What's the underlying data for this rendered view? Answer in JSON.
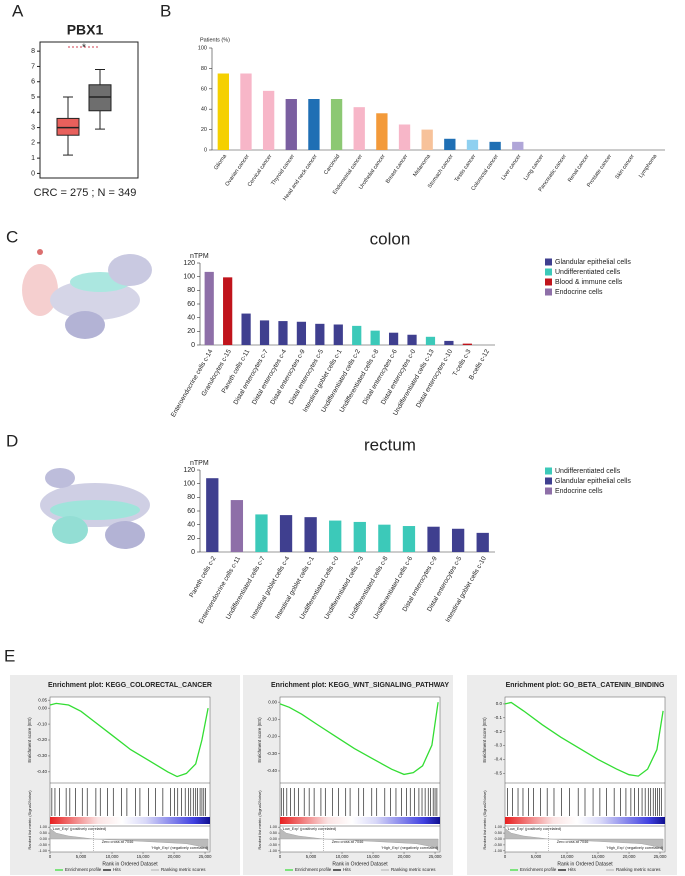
{
  "panels": [
    "A",
    "B",
    "C",
    "D",
    "E"
  ],
  "chart_data": [
    {
      "type": "box",
      "title": "PBX1",
      "caption": "CRC = 275 ; N = 349",
      "annotation": "*",
      "ylim": [
        -0.3,
        8.6
      ],
      "yticks": [
        0,
        1,
        2,
        3,
        4,
        5,
        6,
        7,
        8
      ],
      "series": [
        {
          "color": "#e8605c",
          "min": 1.2,
          "q1": 2.5,
          "median": 3.0,
          "q3": 3.6,
          "max": 5.0
        },
        {
          "color": "#6e6e6e",
          "min": 2.9,
          "q1": 4.1,
          "median": 5.0,
          "q3": 5.8,
          "max": 6.8
        }
      ]
    },
    {
      "type": "bar",
      "ylabel": "Patients (%)",
      "ylim": [
        0,
        100
      ],
      "yticks": [
        0,
        20,
        40,
        60,
        80,
        100
      ],
      "categories": [
        "Glioma",
        "Ovarian cancer",
        "Cervical cancer",
        "Thyroid cancer",
        "Head and neck cancer",
        "Carcinoid",
        "Endometrial cancer",
        "Urothelial cancer",
        "Breast cancer",
        "Melanoma",
        "Stomach cancer",
        "Testis cancer",
        "Colorectal cancer",
        "Liver cancer",
        "Lung cancer",
        "Pancreatic cancer",
        "Renal cancer",
        "Prostate cancer",
        "Skin cancer",
        "Lymphoma"
      ],
      "values": [
        75,
        75,
        58,
        50,
        50,
        50,
        42,
        36,
        25,
        20,
        11,
        10,
        8,
        8,
        0,
        0,
        0,
        0,
        0,
        0
      ],
      "colors": [
        "#f5d000",
        "#f7b6c8",
        "#f7b6c8",
        "#7a5fa0",
        "#1f6fb4",
        "#8cc873",
        "#f7b6c8",
        "#f39a3a",
        "#f7b6c8",
        "#f7c29a",
        "#1f6fb4",
        "#8fd0f0",
        "#1f6fb4",
        "#b0a6d8",
        "#cccccc",
        "#cccccc",
        "#cccccc",
        "#cccccc",
        "#cccccc",
        "#cccccc"
      ]
    },
    {
      "type": "bar",
      "title": "colon",
      "ylabel": "nTPM",
      "ylim": [
        0,
        120
      ],
      "yticks": [
        0,
        20,
        40,
        60,
        80,
        100,
        120
      ],
      "categories": [
        "Enteroendocrine cells c-14",
        "Granulocytes c-15",
        "Paneth cells c-11",
        "Distal enterocytes c-7",
        "Distal enterocytes c-4",
        "Distal enterocytes c-9",
        "Distal enterocytes c-5",
        "Intestinal goblet cells c-1",
        "Undifferentiated cells c-2",
        "Undifferentiated cells c-8",
        "Distal enterocytes c-6",
        "Distal enterocytes c-0",
        "Undifferentiated cells c-13",
        "Distal enterocytes c-10",
        "T-cells c-3",
        "B-cells c-12"
      ],
      "values": [
        107,
        99,
        46,
        36,
        35,
        34,
        31,
        30,
        28,
        21,
        18,
        15,
        12,
        6,
        2,
        0
      ],
      "colors": [
        "#8e6fa8",
        "#c0141c",
        "#3f3f8f",
        "#3f3f8f",
        "#3f3f8f",
        "#3f3f8f",
        "#3f3f8f",
        "#3f3f8f",
        "#3cc9b9",
        "#3cc9b9",
        "#3f3f8f",
        "#3f3f8f",
        "#3cc9b9",
        "#3f3f8f",
        "#c0141c",
        "#c0141c"
      ],
      "legend": [
        {
          "name": "Glandular epithelial cells",
          "color": "#3f3f8f"
        },
        {
          "name": "Undifferentiated cells",
          "color": "#3cc9b9"
        },
        {
          "name": "Blood & immune cells",
          "color": "#c0141c"
        },
        {
          "name": "Endocrine cells",
          "color": "#8e6fa8"
        }
      ]
    },
    {
      "type": "bar",
      "title": "rectum",
      "ylabel": "nTPM",
      "ylim": [
        0,
        120
      ],
      "yticks": [
        0,
        20,
        40,
        60,
        80,
        100,
        120
      ],
      "categories": [
        "Paneth cells c-2",
        "Enteroendocrine cells c-11",
        "Undifferentiated cells c-7",
        "Intestinal goblet cells c-4",
        "Intestinal goblet cells c-1",
        "Undifferentiated cells c-0",
        "Undifferentiated cells c-3",
        "Undifferentiated cells c-8",
        "Undifferentiated cells c-6",
        "Distal enterocytes c-9",
        "Distal enterocytes c-5",
        "Intestinal goblet cells c-10"
      ],
      "values": [
        108,
        76,
        55,
        54,
        51,
        46,
        44,
        40,
        38,
        37,
        34,
        28
      ],
      "colors": [
        "#3f3f8f",
        "#8e6fa8",
        "#3cc9b9",
        "#3f3f8f",
        "#3f3f8f",
        "#3cc9b9",
        "#3cc9b9",
        "#3cc9b9",
        "#3cc9b9",
        "#3f3f8f",
        "#3f3f8f",
        "#3f3f8f"
      ],
      "legend": [
        {
          "name": "Undifferentiated cells",
          "color": "#3cc9b9"
        },
        {
          "name": "Glandular epithelial cells",
          "color": "#3f3f8f"
        },
        {
          "name": "Endocrine cells",
          "color": "#8e6fa8"
        }
      ]
    },
    {
      "type": "gsea",
      "title": "Enrichment plot: KEGG_COLORECTAL_CANCER",
      "ylabel": "Enrichment score (ES)",
      "metric_label": "Ranked list metric (Signal2Noise)",
      "xlabel": "Rank in Ordered Dataset",
      "low_label": "'Low_Exp' (positively correlated)",
      "high_label": "'High_Exp' (negatively correlated)",
      "zero_cross": "Zero cross at 7046",
      "legend": [
        "Enrichment profile",
        "Hits",
        "Ranking metric scores"
      ],
      "color": "#33dd33",
      "xlim": [
        0,
        25800
      ],
      "xticks": [
        0,
        {
          "value": 5000,
          "label": "5,000"
        },
        {
          "value": 10000,
          "label": "10,000"
        },
        {
          "value": 15000,
          "label": "15,000"
        },
        {
          "value": 20000,
          "label": "20,000"
        },
        {
          "value": 25000,
          "label": "25,000"
        }
      ],
      "ylim": [
        -0.47,
        0.07
      ],
      "yticks": [
        {
          "value": 0.05,
          "label": "0.05"
        },
        {
          "value": 0,
          "label": "0.00"
        },
        {
          "value": -0.1,
          "label": "-0.10"
        },
        {
          "value": -0.2,
          "label": "-0.20"
        },
        {
          "value": -0.3,
          "label": "-0.30"
        },
        {
          "value": -0.4,
          "label": "-0.40"
        }
      ],
      "x": [
        0,
        1000,
        3000,
        5000,
        7000,
        10000,
        13000,
        16000,
        19000,
        20500,
        22000,
        23500,
        24500,
        25500
      ],
      "values": [
        0.02,
        0.03,
        0.02,
        -0.02,
        -0.08,
        -0.17,
        -0.26,
        -0.33,
        -0.4,
        -0.43,
        -0.41,
        -0.35,
        -0.2,
        0.0
      ],
      "hits": [
        300,
        800,
        1500,
        2600,
        3200,
        4100,
        5200,
        6000,
        7400,
        8100,
        9300,
        10200,
        11500,
        12400,
        13800,
        14500,
        15900,
        17000,
        18200,
        19400,
        20100,
        20600,
        21200,
        21800,
        22300,
        22700,
        23100,
        23500,
        23800,
        24200,
        24500,
        24800,
        25100
      ],
      "metric_ylim": [
        -1.1,
        1.1
      ],
      "metric_ticks": [
        {
          "value": 1,
          "label": "1.00"
        },
        {
          "value": 0.5,
          "label": "0.50"
        },
        {
          "value": 0,
          "label": "0.00"
        },
        {
          "value": -0.5,
          "label": "-0.50"
        },
        {
          "value": -1,
          "label": "-1.00"
        }
      ],
      "metric_x": [
        0,
        1000,
        3000,
        7046,
        15000,
        22000,
        25000,
        25500
      ],
      "metric": [
        0.9,
        0.5,
        0.25,
        0,
        -0.2,
        -0.4,
        -0.7,
        -1.0
      ]
    },
    {
      "type": "gsea",
      "title": "Enrichment plot: KEGG_WNT_SIGNALING_PATHWAY",
      "ylabel": "Enrichment score (ES)",
      "metric_label": "Ranked list metric (Signal2Noise)",
      "xlabel": "Rank in Ordered Dataset",
      "low_label": "'Low_Exp' (positively correlated)",
      "high_label": "'High_Exp' (negatively correlated)",
      "zero_cross": "Zero cross at 7046",
      "legend": [
        "Enrichment profile",
        "Hits",
        "Ranking metric scores"
      ],
      "color": "#33dd33",
      "xlim": [
        0,
        25800
      ],
      "xticks": [
        0,
        {
          "value": 5000,
          "label": "5,000"
        },
        {
          "value": 10000,
          "label": "10,000"
        },
        {
          "value": 15000,
          "label": "15,000"
        },
        {
          "value": 20000,
          "label": "20,000"
        },
        {
          "value": 25000,
          "label": "25,000"
        }
      ],
      "ylim": [
        -0.47,
        0.03
      ],
      "yticks": [
        {
          "value": 0,
          "label": "0.00"
        },
        {
          "value": -0.1,
          "label": "-0.10"
        },
        {
          "value": -0.2,
          "label": "-0.20"
        },
        {
          "value": -0.3,
          "label": "-0.30"
        },
        {
          "value": -0.4,
          "label": "-0.40"
        }
      ],
      "x": [
        0,
        1500,
        3500,
        6000,
        9000,
        12000,
        15000,
        18000,
        20000,
        21500,
        23000,
        24500,
        25500
      ],
      "values": [
        -0.01,
        -0.03,
        -0.07,
        -0.13,
        -0.2,
        -0.27,
        -0.33,
        -0.39,
        -0.42,
        -0.41,
        -0.37,
        -0.25,
        0.0
      ],
      "hits": [
        200,
        600,
        1100,
        1700,
        2300,
        3000,
        3900,
        4700,
        5500,
        6600,
        7300,
        8500,
        9400,
        10600,
        11300,
        12700,
        13500,
        14800,
        15600,
        16900,
        17800,
        18700,
        19600,
        20400,
        21000,
        21700,
        22400,
        22900,
        23400,
        23900,
        24300,
        24700,
        25000,
        25300
      ],
      "metric_ylim": [
        -1.1,
        1.1
      ],
      "metric_ticks": [
        {
          "value": 1,
          "label": "1.00"
        },
        {
          "value": 0.5,
          "label": "0.50"
        },
        {
          "value": 0,
          "label": "0.00"
        },
        {
          "value": -0.5,
          "label": "-0.50"
        },
        {
          "value": -1,
          "label": "-1.00"
        }
      ],
      "metric_x": [
        0,
        1000,
        3000,
        7046,
        15000,
        22000,
        25000,
        25500
      ],
      "metric": [
        0.9,
        0.5,
        0.25,
        0,
        -0.2,
        -0.4,
        -0.7,
        -1.0
      ]
    },
    {
      "type": "gsea",
      "title": "Enrichment plot: GO_BETA_CATENIN_BINDING",
      "ylabel": "Enrichment score (ES)",
      "metric_label": "Ranked list metric (Signal2Noise)",
      "xlabel": "Rank in Ordered Dataset",
      "low_label": "'Low_Exp' (positively correlated)",
      "high_label": "'High_Exp' (negatively correlated)",
      "zero_cross": "Zero cross at 7046",
      "legend": [
        "Enrichment profile",
        "Hits",
        "Ranking metric scores"
      ],
      "color": "#33dd33",
      "xlim": [
        0,
        25800
      ],
      "xticks": [
        0,
        {
          "value": 5000,
          "label": "5,000"
        },
        {
          "value": 10000,
          "label": "10,000"
        },
        {
          "value": 15000,
          "label": "15,000"
        },
        {
          "value": 20000,
          "label": "20,000"
        },
        {
          "value": 25000,
          "label": "25,000"
        }
      ],
      "ylim": [
        -0.57,
        0.05
      ],
      "yticks": [
        {
          "value": 0,
          "label": "0.0"
        },
        -0.1,
        -0.2,
        -0.3,
        -0.4,
        -0.5
      ],
      "x": [
        0,
        1000,
        3000,
        6000,
        9000,
        12000,
        15000,
        18000,
        20000,
        21500,
        23000,
        24500,
        25500
      ],
      "values": [
        0.0,
        0.01,
        -0.05,
        -0.15,
        -0.24,
        -0.32,
        -0.4,
        -0.47,
        -0.51,
        -0.52,
        -0.47,
        -0.33,
        -0.05
      ],
      "hits": [
        400,
        1200,
        2100,
        2900,
        3800,
        4600,
        5700,
        6800,
        7900,
        9100,
        10400,
        11800,
        12900,
        14200,
        15300,
        16400,
        17600,
        18600,
        19500,
        20300,
        20900,
        21500,
        22100,
        22600,
        23100,
        23500,
        23900,
        24300,
        24600,
        24900,
        25200
      ],
      "metric_ylim": [
        -1.1,
        1.1
      ],
      "metric_ticks": [
        {
          "value": 1,
          "label": "1.00"
        },
        {
          "value": 0.5,
          "label": "0.50"
        },
        {
          "value": 0,
          "label": "0.00"
        },
        {
          "value": -0.5,
          "label": "-0.50"
        },
        {
          "value": -1,
          "label": "-1.00"
        }
      ],
      "metric_x": [
        0,
        1000,
        3000,
        7046,
        15000,
        22000,
        25000,
        25500
      ],
      "metric": [
        0.9,
        0.5,
        0.25,
        0,
        -0.2,
        -0.4,
        -0.7,
        -1.0
      ]
    }
  ]
}
